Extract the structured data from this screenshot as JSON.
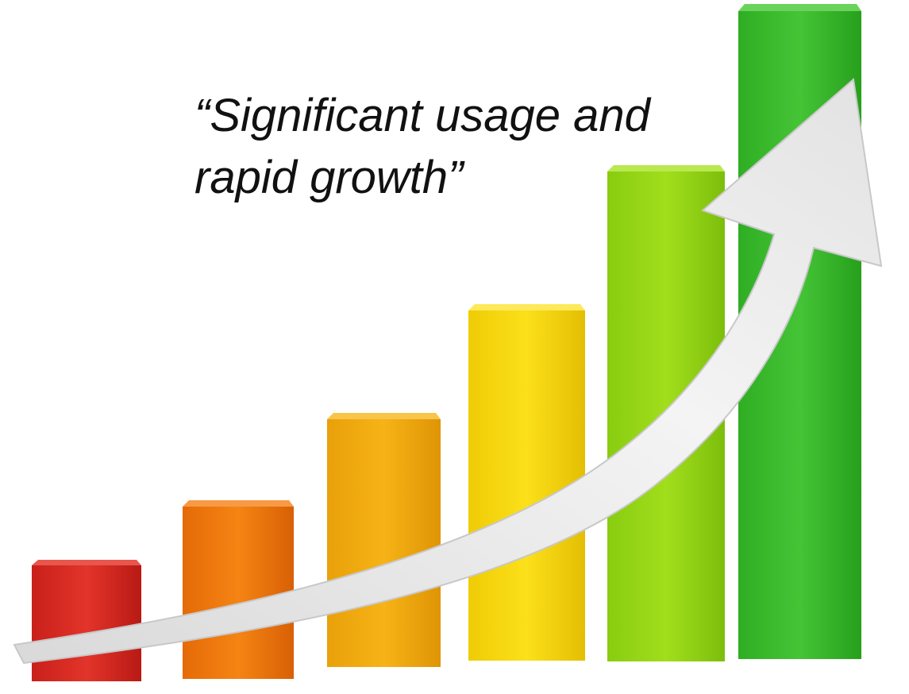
{
  "quote": {
    "lines": [
      "“Significant usage and",
      "rapid growth”"
    ]
  }
}
